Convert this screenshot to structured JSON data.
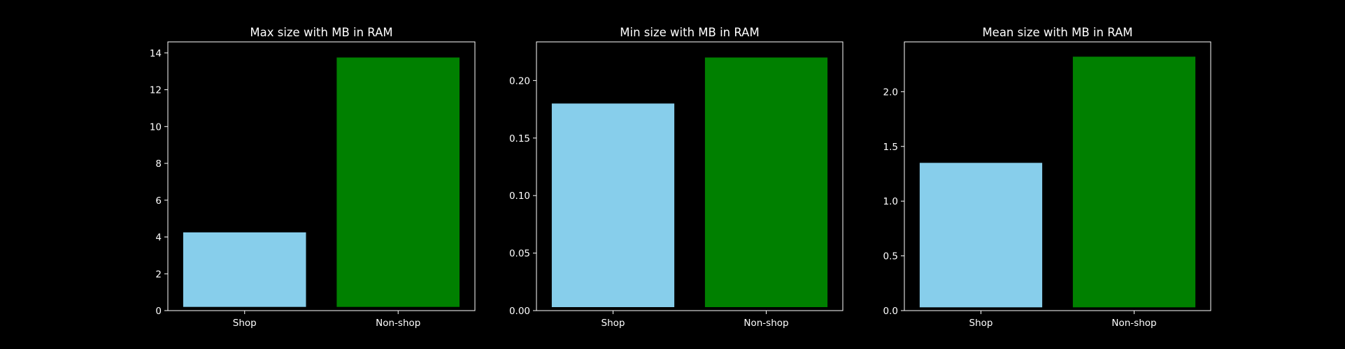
{
  "figure": {
    "background": "#000000"
  },
  "chart_data": [
    {
      "type": "bar",
      "title": "Max size with MB in RAM",
      "categories": [
        "Shop",
        "Non-shop"
      ],
      "values": [
        4.25,
        13.75
      ],
      "colors": [
        "#87ceeb",
        "#008000"
      ],
      "ylim": [
        0,
        14.6
      ],
      "yticks": [
        0,
        2,
        4,
        6,
        8,
        10,
        12,
        14
      ],
      "ytick_labels": [
        "0",
        "2",
        "4",
        "6",
        "8",
        "10",
        "12",
        "14"
      ],
      "baseline": 0.2,
      "xlabel": "",
      "ylabel": "",
      "grid": false
    },
    {
      "type": "bar",
      "title": "Min size with MB in RAM",
      "categories": [
        "Shop",
        "Non-shop"
      ],
      "values": [
        0.18,
        0.22
      ],
      "colors": [
        "#87ceeb",
        "#008000"
      ],
      "ylim": [
        0,
        0.2336
      ],
      "yticks": [
        0,
        0.05,
        0.1,
        0.15,
        0.2
      ],
      "ytick_labels": [
        "0.00",
        "0.05",
        "0.10",
        "0.15",
        "0.20"
      ],
      "baseline": 0.003,
      "xlabel": "",
      "ylabel": "",
      "grid": false
    },
    {
      "type": "bar",
      "title": "Mean size with MB in RAM",
      "categories": [
        "Shop",
        "Non-shop"
      ],
      "values": [
        1.35,
        2.32
      ],
      "colors": [
        "#87ceeb",
        "#008000"
      ],
      "ylim": [
        0,
        2.455
      ],
      "yticks": [
        0,
        0.5,
        1,
        1.5,
        2
      ],
      "ytick_labels": [
        "0.0",
        "0.5",
        "1.0",
        "1.5",
        "2.0"
      ],
      "baseline": 0.03,
      "xlabel": "",
      "ylabel": "",
      "grid": false
    }
  ]
}
